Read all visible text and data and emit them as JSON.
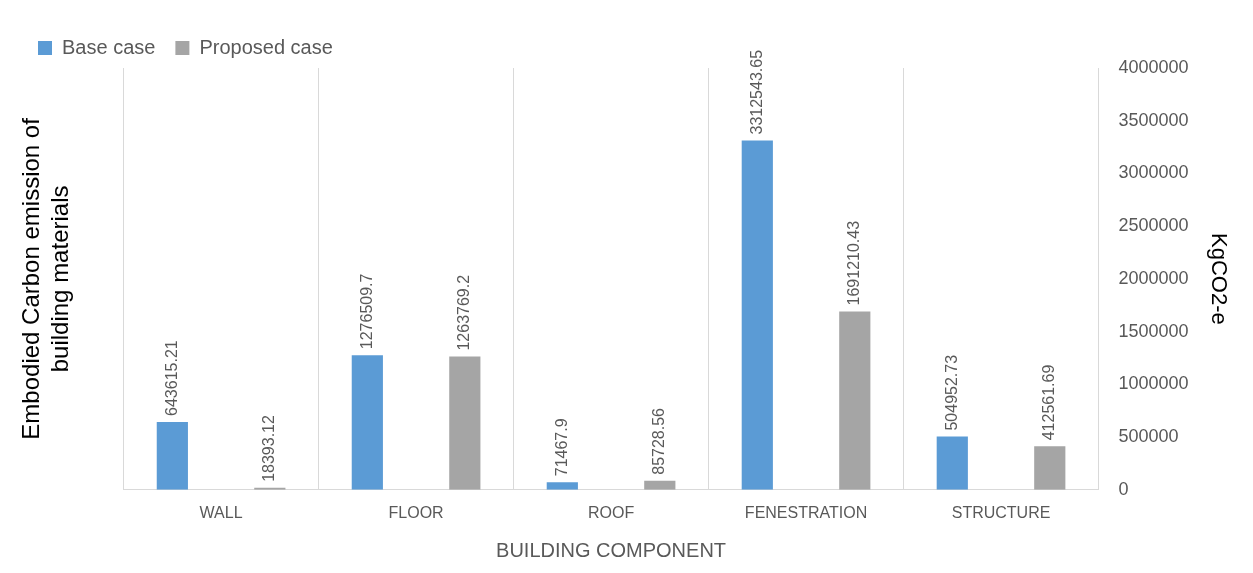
{
  "chart_data": {
    "type": "bar",
    "xlabel": "BUILDING COMPONENT",
    "ylabel": "Embodied Carbon emission of building materials",
    "y2label": "KgCO2-e",
    "categories": [
      "WALL",
      "FLOOR",
      "ROOF",
      "FENESTRATION",
      "STRUCTURE"
    ],
    "series": [
      {
        "name": "Base case",
        "color": "#5b9bd5",
        "axis": "y2",
        "values": [
          643615.21,
          1276509.7,
          71467.9,
          3312543.65,
          504952.73
        ]
      },
      {
        "name": "Proposed case",
        "color": "#a5a5a5",
        "axis": "y2",
        "values": [
          18393.12,
          1263769.2,
          85728.56,
          1691210.43,
          412561.69
        ]
      }
    ],
    "y2lim": [
      0,
      4000000
    ],
    "y2ticks": [
      0,
      500000,
      1000000,
      1500000,
      2000000,
      2500000,
      3000000,
      3500000,
      4000000
    ],
    "grid": "x",
    "legend": "top left",
    "data_labels": true
  }
}
